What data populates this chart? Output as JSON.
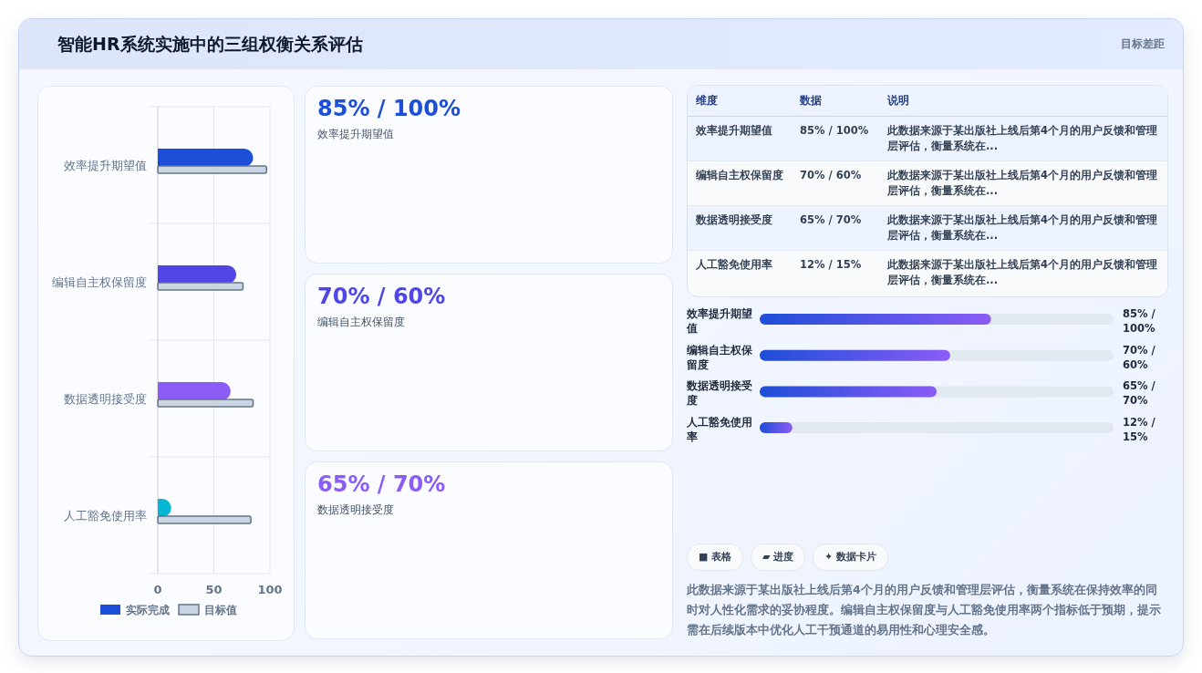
{
  "chart_data": [
    {
      "type": "other",
      "title": "智能HR系统实施中的三组权衡关系评估",
      "subtitle": "目标差距"
    },
    {
      "type": "bar",
      "orientation": "horizontal",
      "categories": [
        "效率提升期望值",
        "编辑自主权保留度",
        "数据透明接受度",
        "人工豁免使用率"
      ],
      "series": [
        {
          "name": "实际完成",
          "color": "#1d4ed8",
          "colors": [
            "#1d4ed8",
            "#4f46e5",
            "#8b5cf6",
            "#06b6d4"
          ],
          "values": [
            85,
            70,
            65,
            12
          ]
        },
        {
          "name": "目标值",
          "color": "#cbd5e1",
          "values": [
            97,
            76,
            85,
            83
          ]
        }
      ],
      "xlim": [
        0,
        100
      ],
      "xticks": [
        0,
        50,
        100
      ],
      "grid": true,
      "legend": "bottom"
    },
    {
      "type": "other",
      "colors": [
        "#1d4ed8",
        "#4f46e5",
        "#8b5cf6"
      ],
      "annotations": [
        "85% / 100%",
        "效率提升期望值",
        "70% / 60%",
        "编辑自主权保留度",
        "65% / 70%",
        "数据透明接受度"
      ]
    },
    {
      "type": "other",
      "annotations": [
        "维度",
        "数据",
        "说明",
        "效率提升期望值",
        "85% / 100%",
        "此数据来源于某出版社上线后第4个月的用户反馈和管理层评估，衡量系统在...",
        "编辑自主权保留度",
        "70% / 60%",
        "此数据来源于某出版社上线后第4个月的用户反馈和管理层评估，衡量系统在...",
        "数据透明接受度",
        "65% / 70%",
        "此数据来源于某出版社上线后第4个月的用户反馈和管理层评估，衡量系统在...",
        "人工豁免使用率",
        "12% / 15%",
        "此数据来源于某出版社上线后第4个月的用户反馈和管理层评估，衡量系统在..."
      ]
    },
    {
      "type": "bar",
      "orientation": "horizontal",
      "categories": [
        "效率提升期望值",
        "编辑自主权保留度",
        "数据透明接受度",
        "人工豁免使用率"
      ],
      "values": [
        85,
        70,
        65,
        12
      ],
      "value_labels": [
        "85% / 100%",
        "70% / 60%",
        "65% / 70%",
        "12% / 15%"
      ],
      "color": "#1d4ed8",
      "colors": [
        "#8b5cf6",
        "#8b5cf6",
        "#8b5cf6",
        "#8b5cf6"
      ],
      "xlim": [
        0,
        130
      ],
      "tick_labels": "y"
    },
    {
      "type": "other",
      "annotations": [
        "■ 表格",
        "▰ 进度",
        "✦ 数据卡片",
        "此数据来源于某出版社上线后第4个月的用户反馈和管理层评估，衡量系统在保持效率的同时对人性化需求的妥协程度。编辑自主权保留度与人工豁免使用率两个指标低于预期，提示需在后续版本中优化人工干预通道的易用性和心理安全感。"
      ]
    }
  ]
}
